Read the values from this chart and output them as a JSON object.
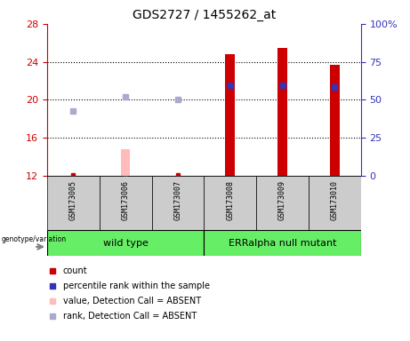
{
  "title": "GDS2727 / 1455262_at",
  "samples": [
    "GSM173005",
    "GSM173006",
    "GSM173007",
    "GSM173008",
    "GSM173009",
    "GSM173010"
  ],
  "ylim_left": [
    12,
    28
  ],
  "ylim_right": [
    0,
    100
  ],
  "yticks_left": [
    12,
    16,
    20,
    24,
    28
  ],
  "yticks_right": [
    0,
    25,
    50,
    75,
    100
  ],
  "ytick_labels_right": [
    "0",
    "25",
    "50",
    "75",
    "100%"
  ],
  "red_bars_present": [
    false,
    false,
    false,
    true,
    true,
    true
  ],
  "red_bars_values": [
    12.1,
    null,
    12.05,
    24.8,
    25.5,
    23.7
  ],
  "pink_bars_absent": [
    false,
    true,
    false,
    false,
    false,
    false
  ],
  "pink_bars_values": [
    null,
    14.8,
    null,
    null,
    null,
    null
  ],
  "blue_squares_present": [
    false,
    false,
    false,
    true,
    true,
    true
  ],
  "blue_squares_values": [
    null,
    null,
    null,
    21.5,
    21.5,
    21.3
  ],
  "lavender_squares_absent": [
    true,
    true,
    true,
    false,
    false,
    false
  ],
  "lavender_squares_values": [
    18.8,
    20.3,
    20.0,
    null,
    null,
    null
  ],
  "red_markers": [
    12.1,
    null,
    12.05,
    null,
    null,
    null
  ],
  "pink_markers": [
    null,
    12.05,
    null,
    null,
    null,
    null
  ],
  "red_color": "#cc0000",
  "pink_color": "#ffbbbb",
  "blue_color": "#3333bb",
  "lavender_color": "#aaaacc",
  "bar_width": 0.18,
  "group_wt_color": "#66ee66",
  "group_err_color": "#66ee66",
  "sample_box_color": "#cccccc",
  "background_color": "#ffffff"
}
